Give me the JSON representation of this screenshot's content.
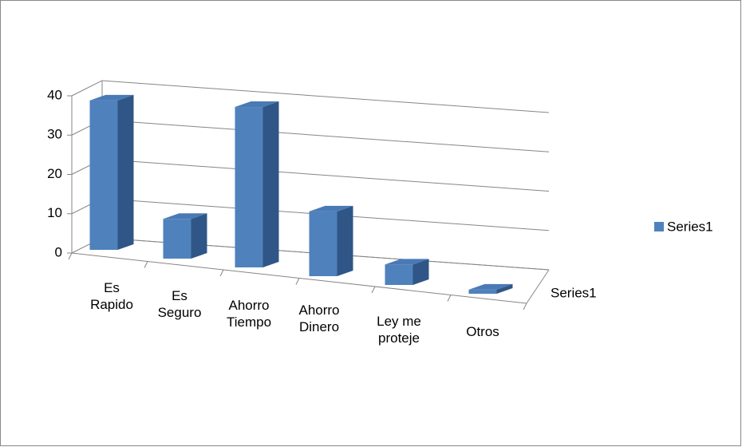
{
  "chart_data": {
    "type": "bar3d",
    "categories": [
      "Es Rapido",
      "Es Seguro",
      "Ahorro Tiempo",
      "Ahorro Dinero",
      "Ley me proteje",
      "Otros"
    ],
    "series": [
      {
        "name": "Series1",
        "color": "#4f81bd",
        "values": [
          38,
          10,
          40,
          16,
          5,
          1
        ]
      }
    ],
    "ylim": [
      0,
      40
    ],
    "yticks": [
      0,
      10,
      20,
      30,
      40
    ],
    "grid": true,
    "legend": "right"
  }
}
